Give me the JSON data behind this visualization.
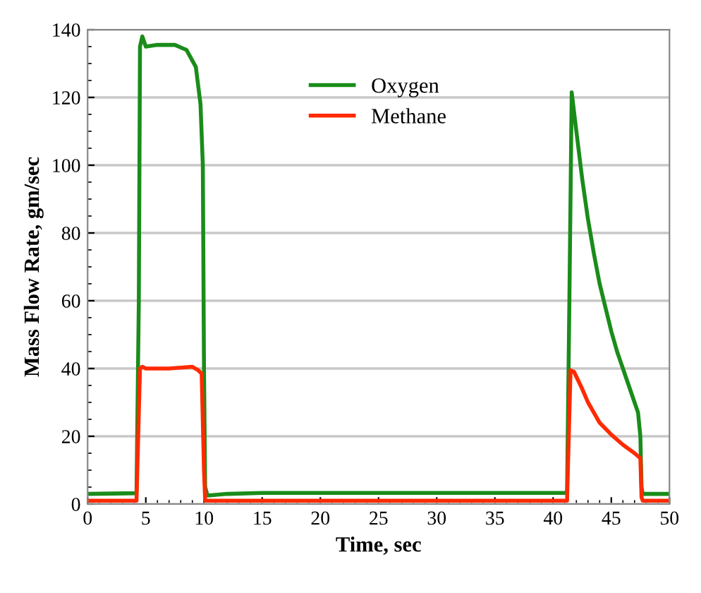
{
  "chart_data": {
    "type": "line",
    "xlabel": "Time, sec",
    "ylabel": "Mass Flow Rate, gm/sec",
    "xlim": [
      0,
      50
    ],
    "xticks": [
      0,
      5,
      10,
      15,
      20,
      25,
      30,
      35,
      40,
      45,
      50
    ],
    "ylim": [
      0,
      140
    ],
    "yticks": [
      0,
      20,
      40,
      60,
      80,
      100,
      120,
      140
    ],
    "grid": "y",
    "legend": "top",
    "marker": "none",
    "line_style": "solid",
    "series": [
      {
        "name": "Oxygen",
        "color": "#1a8c1a",
        "x": [
          0,
          4.2,
          4.4,
          4.5,
          4.7,
          5.0,
          6,
          7.5,
          8.5,
          9.3,
          9.7,
          9.9,
          10.0,
          10.1,
          10.3,
          12,
          15,
          25,
          41.2,
          41.4,
          41.6,
          42,
          42.5,
          43,
          43.5,
          44,
          44.5,
          45,
          45.5,
          46,
          46.5,
          47,
          47.3,
          47.5,
          47.6,
          47.7,
          50
        ],
        "values": [
          3,
          3.2,
          60,
          135,
          138,
          135,
          135.5,
          135.5,
          134,
          129,
          118,
          100,
          40,
          5,
          2.5,
          3,
          3.3,
          3.3,
          3.3,
          60,
          121.5,
          110,
          96,
          84,
          74,
          65,
          58,
          51,
          45,
          40,
          35,
          30,
          27,
          20,
          5,
          3,
          3
        ]
      },
      {
        "name": "Methane",
        "color": "#ff2a00",
        "x": [
          0,
          4.2,
          4.5,
          4.7,
          5,
          7,
          9,
          9.5,
          9.8,
          10,
          10.1,
          41.2,
          41.5,
          41.8,
          42.5,
          43,
          43.5,
          44,
          45,
          46,
          47,
          47.5,
          47.6,
          47.7,
          50
        ],
        "values": [
          1,
          1,
          40,
          40.5,
          40,
          40,
          40.5,
          39.5,
          38.5,
          10,
          1,
          1,
          39.5,
          39,
          34,
          30,
          27,
          24,
          20.5,
          17.5,
          15,
          13.5,
          2,
          1,
          1
        ]
      }
    ]
  }
}
